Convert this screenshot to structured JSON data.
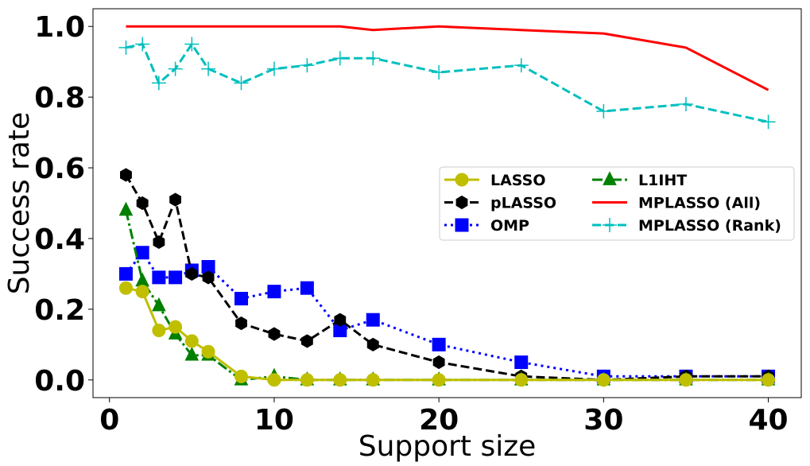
{
  "chart_data": {
    "type": "line",
    "xlabel": "Support size",
    "ylabel": "Success rate",
    "xlim": [
      -1,
      42
    ],
    "ylim": [
      -0.05,
      1.05
    ],
    "xticks": [
      0,
      10,
      20,
      30,
      40
    ],
    "xtick_labels": [
      "0",
      "10",
      "20",
      "30",
      "40"
    ],
    "yticks": [
      0.0,
      0.2,
      0.4,
      0.6,
      0.8,
      1.0
    ],
    "ytick_labels": [
      "0.0",
      "0.2",
      "0.4",
      "0.6",
      "0.8",
      "1.0"
    ],
    "grid": false,
    "legend": {
      "placement": "center-right",
      "columns": 2
    },
    "series": [
      {
        "name": "LASSO",
        "color": "#bfbf00",
        "linestyle": "solid",
        "marker": "circle",
        "x": [
          1,
          2,
          3,
          4,
          5,
          6,
          8,
          10,
          12,
          14,
          16,
          20,
          25,
          30,
          35,
          40
        ],
        "y": [
          0.26,
          0.25,
          0.14,
          0.15,
          0.11,
          0.08,
          0.01,
          0.0,
          0.0,
          0.0,
          0.0,
          0.0,
          0.0,
          0.0,
          0.0,
          0.0
        ]
      },
      {
        "name": "pLASSO",
        "color": "#000000",
        "linestyle": "dashed",
        "marker": "hexagon",
        "x": [
          1,
          2,
          3,
          4,
          5,
          6,
          8,
          10,
          12,
          14,
          16,
          20,
          25,
          30,
          35,
          40
        ],
        "y": [
          0.58,
          0.5,
          0.39,
          0.51,
          0.3,
          0.29,
          0.16,
          0.13,
          0.11,
          0.17,
          0.1,
          0.05,
          0.01,
          0.0,
          0.01,
          0.01
        ]
      },
      {
        "name": "OMP",
        "color": "#0000ff",
        "linestyle": "dotted",
        "marker": "square",
        "x": [
          1,
          2,
          3,
          4,
          5,
          6,
          8,
          10,
          12,
          14,
          16,
          20,
          25,
          30,
          35,
          40
        ],
        "y": [
          0.3,
          0.36,
          0.29,
          0.29,
          0.31,
          0.32,
          0.23,
          0.25,
          0.26,
          0.14,
          0.17,
          0.1,
          0.05,
          0.01,
          0.01,
          0.01
        ]
      },
      {
        "name": "L1IHT",
        "color": "#008000",
        "linestyle": "dashdot",
        "marker": "triangle",
        "x": [
          1,
          2,
          3,
          4,
          5,
          6,
          8,
          10,
          12,
          14,
          16,
          20,
          25,
          30,
          35,
          40
        ],
        "y": [
          0.48,
          0.28,
          0.21,
          0.13,
          0.07,
          0.07,
          0.0,
          0.01,
          0.0,
          0.0,
          0.0,
          0.0,
          0.0,
          0.0,
          0.0,
          0.0
        ]
      },
      {
        "name": "MPLASSO (All)",
        "color": "#ff0000",
        "linestyle": "solid",
        "marker": "none",
        "x": [
          1,
          2,
          3,
          4,
          5,
          6,
          8,
          10,
          12,
          14,
          16,
          20,
          25,
          30,
          35,
          40
        ],
        "y": [
          1.0,
          1.0,
          1.0,
          1.0,
          1.0,
          1.0,
          1.0,
          1.0,
          1.0,
          1.0,
          0.99,
          1.0,
          0.99,
          0.98,
          0.94,
          0.82
        ]
      },
      {
        "name": "MPLASSO (Rank)",
        "color": "#00bfbf",
        "linestyle": "dashed",
        "marker": "plus",
        "x": [
          1,
          2,
          3,
          4,
          5,
          6,
          8,
          10,
          12,
          14,
          16,
          20,
          25,
          30,
          35,
          40
        ],
        "y": [
          0.94,
          0.95,
          0.84,
          0.88,
          0.95,
          0.88,
          0.84,
          0.88,
          0.89,
          0.91,
          0.91,
          0.87,
          0.89,
          0.76,
          0.78,
          0.73
        ]
      }
    ]
  }
}
